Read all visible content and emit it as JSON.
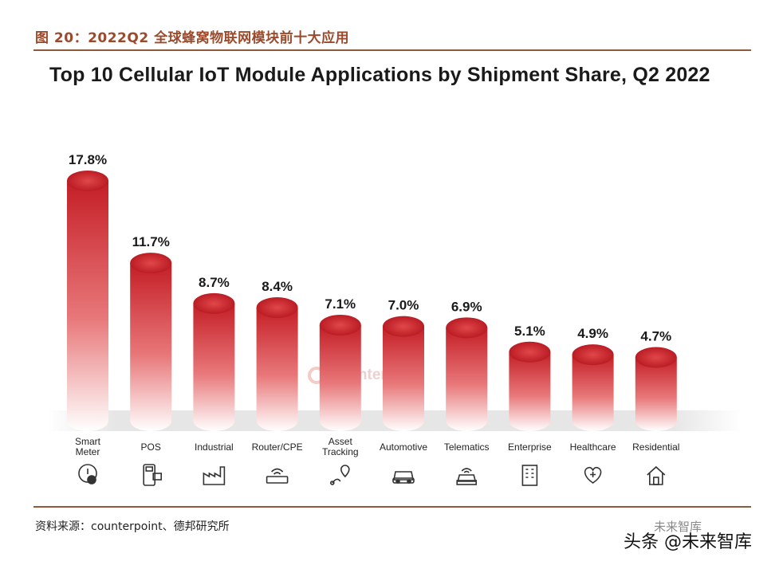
{
  "figure_title": "图 20：2022Q2 全球蜂窝物联网模块前十大应用",
  "source_note": "资料来源：counterpoint、德邦研究所",
  "watermark": "Counterpoint",
  "brand_top": "未来智库",
  "brand_bottom": "头条 @未来智库",
  "colors": {
    "bar_top": "#b3141c",
    "bar_fade": "#ffffff",
    "accent": "#9c4a2c"
  },
  "chart_data": {
    "type": "bar",
    "title": "Top 10 Cellular IoT Module Applications by Shipment Share, Q2 2022",
    "categories": [
      "Smart Meter",
      "POS",
      "Industrial",
      "Router/CPE",
      "Asset Tracking",
      "Automotive",
      "Telematics",
      "Enterprise",
      "Healthcare",
      "Residential"
    ],
    "values": [
      17.8,
      11.7,
      8.7,
      8.4,
      7.1,
      7.0,
      6.9,
      5.1,
      4.9,
      4.7
    ],
    "value_labels": [
      "17.8%",
      "11.7%",
      "8.7%",
      "8.4%",
      "7.1%",
      "7.0%",
      "6.9%",
      "5.1%",
      "4.9%",
      "4.7%"
    ],
    "category_labels": [
      [
        "Smart",
        "Meter"
      ],
      [
        "POS"
      ],
      [
        "Industrial"
      ],
      [
        "Router/CPE"
      ],
      [
        "Asset",
        "Tracking"
      ],
      [
        "Automotive"
      ],
      [
        "Telematics"
      ],
      [
        "Enterprise"
      ],
      [
        "Healthcare"
      ],
      [
        "Residential"
      ]
    ],
    "icons": [
      "meter-icon",
      "pos-terminal-icon",
      "factory-icon",
      "router-icon",
      "location-tracking-icon",
      "car-icon",
      "telematics-icon",
      "building-icon",
      "healthcare-icon",
      "house-icon"
    ],
    "ylim": [
      0,
      20
    ],
    "grid": false,
    "legend": "none",
    "xlabel": "",
    "ylabel": ""
  }
}
